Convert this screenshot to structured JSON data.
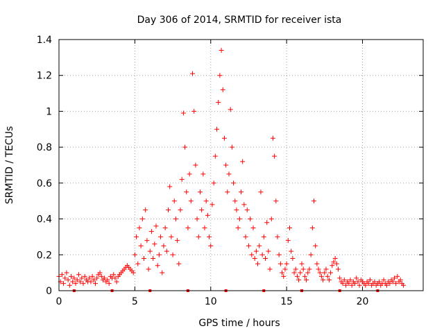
{
  "chart_data": {
    "type": "scatter",
    "title": "Day 306 of 2014, SRMTID for receiver ista",
    "xlabel": "GPS time / hours",
    "ylabel": "SRMTID / TECUs",
    "xlim": [
      0,
      24
    ],
    "ylim": [
      0,
      1.4
    ],
    "xticks": [
      0,
      5,
      10,
      15,
      20
    ],
    "xtick_labels": [
      "0",
      "5",
      "10",
      "15",
      "20"
    ],
    "yticks": [
      0,
      0.2,
      0.4,
      0.6,
      0.8,
      1.0,
      1.2,
      1.4
    ],
    "ytick_labels": [
      "0",
      "0.2",
      "0.4",
      "0.6",
      "0.8",
      "1",
      "1.2",
      "1.4"
    ],
    "grid": true,
    "marker": "plus",
    "color": "#ff0000",
    "series": [
      {
        "name": "SRMTID",
        "points": [
          [
            0.0,
            0.08
          ],
          [
            0.1,
            0.05
          ],
          [
            0.2,
            0.09
          ],
          [
            0.3,
            0.04
          ],
          [
            0.4,
            0.07
          ],
          [
            0.5,
            0.1
          ],
          [
            0.6,
            0.06
          ],
          [
            0.7,
            0.03
          ],
          [
            0.8,
            0.08
          ],
          [
            0.9,
            0.05
          ],
          [
            1.0,
            0.07
          ],
          [
            1.1,
            0.04
          ],
          [
            1.2,
            0.06
          ],
          [
            1.3,
            0.09
          ],
          [
            1.4,
            0.05
          ],
          [
            1.5,
            0.07
          ],
          [
            1.6,
            0.04
          ],
          [
            1.7,
            0.08
          ],
          [
            1.8,
            0.06
          ],
          [
            1.9,
            0.05
          ],
          [
            2.0,
            0.07
          ],
          [
            2.1,
            0.05
          ],
          [
            2.2,
            0.08
          ],
          [
            2.3,
            0.06
          ],
          [
            2.4,
            0.04
          ],
          [
            2.5,
            0.07
          ],
          [
            2.6,
            0.09
          ],
          [
            2.7,
            0.1
          ],
          [
            2.8,
            0.08
          ],
          [
            2.9,
            0.06
          ],
          [
            3.0,
            0.07
          ],
          [
            3.1,
            0.05
          ],
          [
            3.2,
            0.06
          ],
          [
            3.3,
            0.04
          ],
          [
            3.4,
            0.08
          ],
          [
            3.5,
            0.07
          ],
          [
            3.6,
            0.09
          ],
          [
            3.7,
            0.07
          ],
          [
            3.8,
            0.05
          ],
          [
            3.9,
            0.08
          ],
          [
            4.0,
            0.09
          ],
          [
            4.1,
            0.1
          ],
          [
            4.2,
            0.11
          ],
          [
            4.3,
            0.12
          ],
          [
            4.4,
            0.13
          ],
          [
            4.5,
            0.14
          ],
          [
            4.6,
            0.13
          ],
          [
            4.7,
            0.12
          ],
          [
            4.8,
            0.11
          ],
          [
            4.9,
            0.1
          ],
          [
            5.0,
            0.2
          ],
          [
            5.1,
            0.3
          ],
          [
            5.2,
            0.15
          ],
          [
            5.3,
            0.35
          ],
          [
            5.4,
            0.25
          ],
          [
            5.5,
            0.4
          ],
          [
            5.6,
            0.18
          ],
          [
            5.7,
            0.45
          ],
          [
            5.8,
            0.28
          ],
          [
            5.9,
            0.12
          ],
          [
            6.0,
            0.22
          ],
          [
            6.1,
            0.33
          ],
          [
            6.2,
            0.18
          ],
          [
            6.3,
            0.26
          ],
          [
            6.4,
            0.36
          ],
          [
            6.5,
            0.14
          ],
          [
            6.6,
            0.2
          ],
          [
            6.7,
            0.3
          ],
          [
            6.8,
            0.1
          ],
          [
            6.9,
            0.25
          ],
          [
            7.0,
            0.35
          ],
          [
            7.1,
            0.22
          ],
          [
            7.2,
            0.45
          ],
          [
            7.3,
            0.58
          ],
          [
            7.4,
            0.3
          ],
          [
            7.5,
            0.2
          ],
          [
            7.6,
            0.5
          ],
          [
            7.7,
            0.4
          ],
          [
            7.8,
            0.28
          ],
          [
            7.9,
            0.15
          ],
          [
            8.0,
            0.45
          ],
          [
            8.1,
            0.62
          ],
          [
            8.2,
            0.99
          ],
          [
            8.3,
            0.8
          ],
          [
            8.4,
            0.55
          ],
          [
            8.5,
            0.35
          ],
          [
            8.6,
            0.65
          ],
          [
            8.7,
            0.5
          ],
          [
            8.8,
            1.21
          ],
          [
            8.9,
            1.0
          ],
          [
            9.0,
            0.7
          ],
          [
            9.1,
            0.4
          ],
          [
            9.2,
            0.3
          ],
          [
            9.3,
            0.55
          ],
          [
            9.4,
            0.45
          ],
          [
            9.5,
            0.65
          ],
          [
            9.6,
            0.35
          ],
          [
            9.7,
            0.5
          ],
          [
            9.8,
            0.42
          ],
          [
            9.9,
            0.3
          ],
          [
            10.0,
            0.25
          ],
          [
            10.1,
            0.48
          ],
          [
            10.2,
            0.6
          ],
          [
            10.3,
            0.75
          ],
          [
            10.4,
            0.9
          ],
          [
            10.5,
            1.05
          ],
          [
            10.6,
            1.2
          ],
          [
            10.7,
            1.34
          ],
          [
            10.8,
            1.12
          ],
          [
            10.9,
            0.85
          ],
          [
            11.0,
            0.7
          ],
          [
            11.1,
            0.55
          ],
          [
            11.2,
            0.65
          ],
          [
            11.3,
            1.01
          ],
          [
            11.4,
            0.8
          ],
          [
            11.5,
            0.6
          ],
          [
            11.6,
            0.5
          ],
          [
            11.7,
            0.45
          ],
          [
            11.8,
            0.35
          ],
          [
            11.9,
            0.4
          ],
          [
            12.0,
            0.55
          ],
          [
            12.1,
            0.72
          ],
          [
            12.2,
            0.48
          ],
          [
            12.3,
            0.3
          ],
          [
            12.4,
            0.45
          ],
          [
            12.5,
            0.25
          ],
          [
            12.6,
            0.4
          ],
          [
            12.7,
            0.2
          ],
          [
            12.8,
            0.35
          ],
          [
            12.9,
            0.18
          ],
          [
            13.0,
            0.22
          ],
          [
            13.1,
            0.15
          ],
          [
            13.2,
            0.25
          ],
          [
            13.3,
            0.55
          ],
          [
            13.4,
            0.2
          ],
          [
            13.5,
            0.3
          ],
          [
            13.6,
            0.18
          ],
          [
            13.7,
            0.38
          ],
          [
            13.8,
            0.22
          ],
          [
            13.9,
            0.12
          ],
          [
            14.0,
            0.4
          ],
          [
            14.1,
            0.85
          ],
          [
            14.2,
            0.75
          ],
          [
            14.3,
            0.5
          ],
          [
            14.4,
            0.3
          ],
          [
            14.5,
            0.2
          ],
          [
            14.6,
            0.15
          ],
          [
            14.7,
            0.1
          ],
          [
            14.8,
            0.08
          ],
          [
            14.9,
            0.12
          ],
          [
            15.0,
            0.15
          ],
          [
            15.1,
            0.28
          ],
          [
            15.2,
            0.35
          ],
          [
            15.3,
            0.22
          ],
          [
            15.4,
            0.18
          ],
          [
            15.5,
            0.1
          ],
          [
            15.6,
            0.12
          ],
          [
            15.7,
            0.08
          ],
          [
            15.8,
            0.06
          ],
          [
            15.9,
            0.1
          ],
          [
            16.0,
            0.15
          ],
          [
            16.1,
            0.12
          ],
          [
            16.2,
            0.08
          ],
          [
            16.3,
            0.06
          ],
          [
            16.4,
            0.1
          ],
          [
            16.5,
            0.12
          ],
          [
            16.6,
            0.2
          ],
          [
            16.7,
            0.35
          ],
          [
            16.8,
            0.5
          ],
          [
            16.9,
            0.25
          ],
          [
            17.0,
            0.15
          ],
          [
            17.1,
            0.12
          ],
          [
            17.2,
            0.1
          ],
          [
            17.3,
            0.08
          ],
          [
            17.4,
            0.06
          ],
          [
            17.5,
            0.1
          ],
          [
            17.6,
            0.12
          ],
          [
            17.7,
            0.08
          ],
          [
            17.8,
            0.06
          ],
          [
            17.9,
            0.1
          ],
          [
            18.0,
            0.14
          ],
          [
            18.1,
            0.16
          ],
          [
            18.2,
            0.18
          ],
          [
            18.3,
            0.15
          ],
          [
            18.4,
            0.12
          ],
          [
            18.5,
            0.07
          ],
          [
            18.6,
            0.05
          ],
          [
            18.7,
            0.04
          ],
          [
            18.8,
            0.06
          ],
          [
            18.9,
            0.03
          ],
          [
            19.0,
            0.05
          ],
          [
            19.1,
            0.04
          ],
          [
            19.2,
            0.06
          ],
          [
            19.3,
            0.03
          ],
          [
            19.4,
            0.05
          ],
          [
            19.5,
            0.04
          ],
          [
            19.6,
            0.07
          ],
          [
            19.7,
            0.05
          ],
          [
            19.8,
            0.03
          ],
          [
            19.9,
            0.06
          ],
          [
            20.0,
            0.05
          ],
          [
            20.1,
            0.04
          ],
          [
            20.2,
            0.03
          ],
          [
            20.3,
            0.05
          ],
          [
            20.4,
            0.04
          ],
          [
            20.5,
            0.06
          ],
          [
            20.6,
            0.03
          ],
          [
            20.7,
            0.04
          ],
          [
            20.8,
            0.05
          ],
          [
            20.9,
            0.03
          ],
          [
            21.0,
            0.04
          ],
          [
            21.1,
            0.05
          ],
          [
            21.2,
            0.03
          ],
          [
            21.3,
            0.04
          ],
          [
            21.4,
            0.06
          ],
          [
            21.5,
            0.04
          ],
          [
            21.6,
            0.03
          ],
          [
            21.7,
            0.05
          ],
          [
            21.8,
            0.04
          ],
          [
            21.9,
            0.06
          ],
          [
            22.0,
            0.05
          ],
          [
            22.1,
            0.07
          ],
          [
            22.2,
            0.04
          ],
          [
            22.3,
            0.08
          ],
          [
            22.4,
            0.05
          ],
          [
            22.5,
            0.06
          ],
          [
            22.6,
            0.04
          ],
          [
            22.7,
            0.03
          ]
        ]
      }
    ],
    "baseline_markers_x": [
      1.0,
      3.5,
      6.0,
      8.5,
      11.0,
      13.5,
      16.0,
      18.5,
      21.0
    ]
  }
}
